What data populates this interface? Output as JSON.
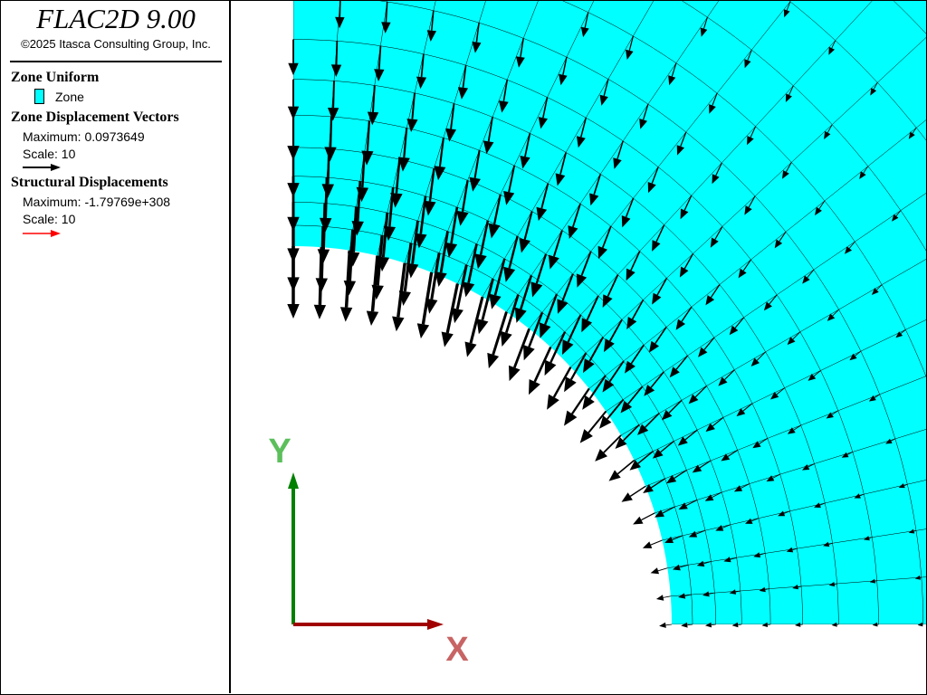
{
  "app": {
    "title": "FLAC2D 9.00",
    "copyright": "©2025 Itasca Consulting Group, Inc."
  },
  "legend": {
    "zone_uniform": {
      "header": "Zone Uniform",
      "item_label": "Zone",
      "color": "#00ffff"
    },
    "zone_displacement": {
      "header": "Zone Displacement Vectors",
      "maximum": "Maximum: 0.0973649",
      "scale": "Scale: 10",
      "arrow_color": "#000000"
    },
    "structural_displacement": {
      "header": "Structural Displacements",
      "maximum": "Maximum: -1.79769e+308",
      "scale": "Scale: 10",
      "arrow_color": "#ff0000"
    }
  },
  "axes": {
    "y_label": "Y",
    "x_label": "X",
    "y_color": "#008000",
    "x_color": "#a00000",
    "y_label_color": "#5cbf5c",
    "x_label_color": "#c86464"
  },
  "model": {
    "zone_color": "#00ffff",
    "grid_color": "#000000",
    "vector_color": "#000000"
  }
}
